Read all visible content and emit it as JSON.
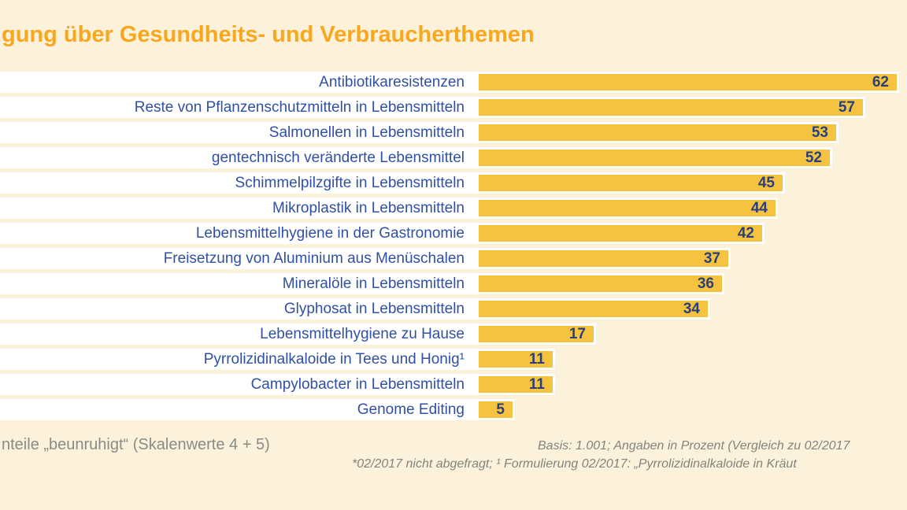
{
  "title": {
    "text": "gung über Gesundheits- und Verbraucherthemen"
  },
  "chart_data": {
    "type": "bar",
    "orientation": "horizontal",
    "unit": "percent",
    "xlim": [
      0,
      62
    ],
    "grid": false,
    "legend": "none",
    "value_labels": "inside-right",
    "categories": [
      "Antibiotikaresistenzen",
      "Reste von Pflanzenschutzmitteln in Lebensmitteln",
      "Salmonellen in Lebensmitteln",
      "gentechnisch veränderte Lebensmittel",
      "Schimmelpilzgifte in Lebensmitteln",
      "Mikroplastik in Lebensmitteln",
      "Lebensmittelhygiene in der Gastronomie",
      "Freisetzung von Aluminium aus Menüschalen",
      "Mineralöle in Lebensmitteln",
      "Glyphosat in Lebensmitteln",
      "Lebensmittelhygiene zu Hause",
      "Pyrrolizidinalkaloide in Tees und Honig¹",
      "Campylobacter in Lebensmitteln",
      "Genome Editing"
    ],
    "values": [
      62,
      57,
      53,
      52,
      45,
      44,
      42,
      37,
      36,
      34,
      17,
      11,
      11,
      5
    ]
  },
  "footer": {
    "left_note": "nteile „beunruhigt“ (Skalenwerte 4 + 5)",
    "right_note_line1": "Basis: 1.001; Angaben in Prozent (Vergleich zu 02/2017",
    "right_note_line2": "*02/2017 nicht abgefragt; ¹ Formulierung 02/2017: „Pyrrolizidinalkaloide in Kräut"
  },
  "colors": {
    "background": "#fcf2dc",
    "row_band": "#ffffff",
    "bar": "#f5c33f",
    "title": "#f9a71d",
    "category_label": "#3150a3",
    "value_label": "#2a3f7e",
    "notes": "#8b8b86"
  }
}
